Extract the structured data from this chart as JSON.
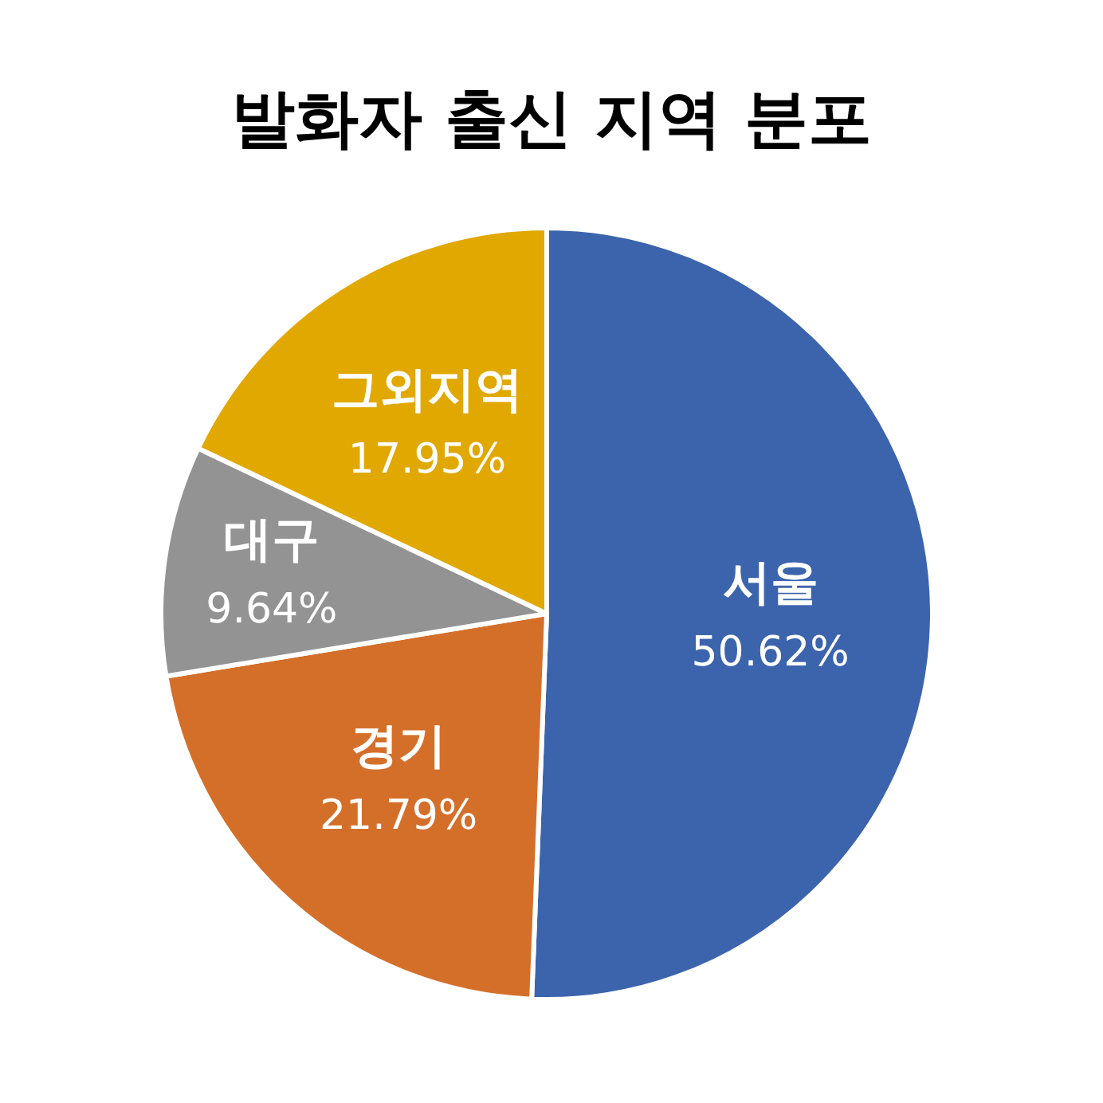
{
  "chart_data": {
    "type": "pie",
    "title": "발화자 출신 지역 분포",
    "categories": [
      "서울",
      "경기",
      "대구",
      "그외지역"
    ],
    "values": [
      50.62,
      21.79,
      9.64,
      17.95
    ],
    "colors": [
      "#3c64ad",
      "#d46f2a",
      "#939393",
      "#e0a800"
    ],
    "value_labels": [
      "50.62%",
      "21.79%",
      "9.64%",
      "17.95%"
    ]
  }
}
